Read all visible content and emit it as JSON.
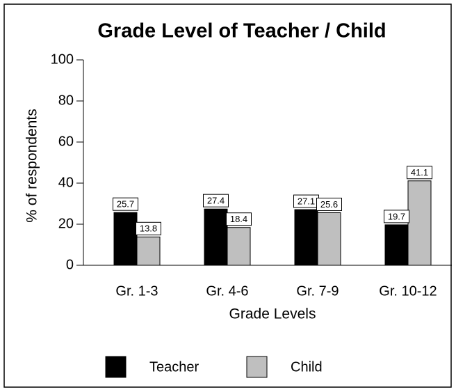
{
  "chart_data": {
    "type": "bar",
    "title": "Grade Level of Teacher / Child",
    "x_label": "Grade Levels",
    "y_label": "% of respondents",
    "categories": [
      "Gr. 1-3",
      "Gr. 4-6",
      "Gr. 7-9",
      "Gr. 10-12"
    ],
    "series": [
      {
        "name": "Teacher",
        "color": "#000000",
        "values": [
          25.7,
          27.4,
          27.1,
          19.7
        ]
      },
      {
        "name": "Child",
        "color": "#bfbfbf",
        "values": [
          13.8,
          18.4,
          25.6,
          41.1
        ]
      }
    ],
    "ylim": [
      0,
      100
    ],
    "yticks": [
      0,
      20,
      40,
      60,
      80,
      100
    ],
    "grid": false,
    "legend": "bottom"
  }
}
